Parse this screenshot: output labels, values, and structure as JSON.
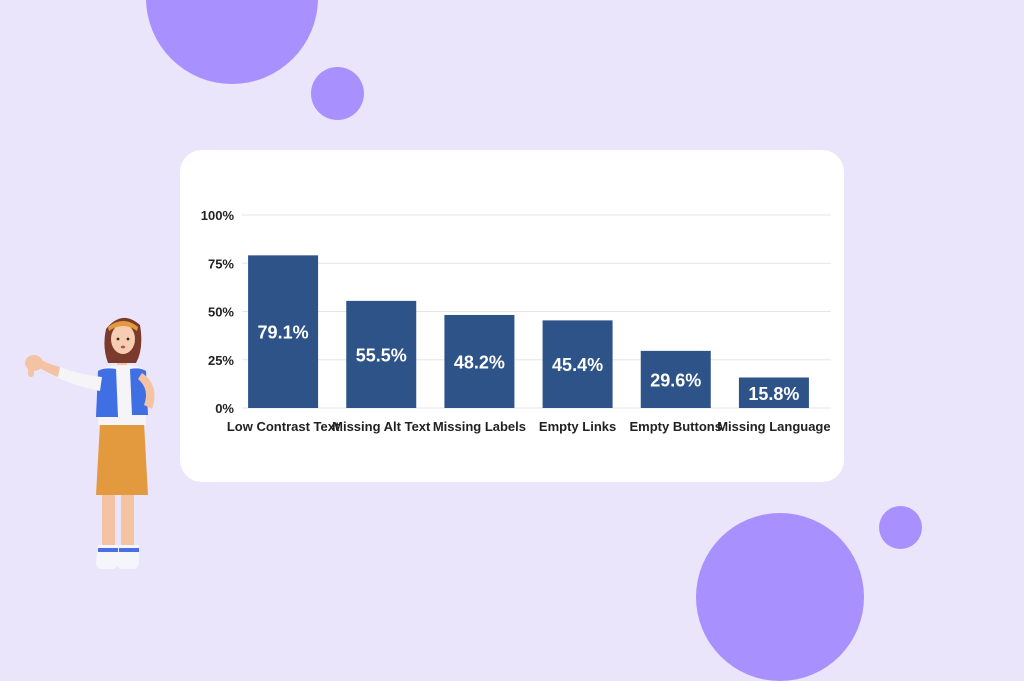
{
  "colors": {
    "background": "#ebe5fc",
    "circle": "#a990ff",
    "card": "#ffffff",
    "bar": "#2d5389",
    "bar_label": "#ffffff",
    "text": "#222222",
    "gridline": "#e6e6e6"
  },
  "chart_data": {
    "type": "bar",
    "categories": [
      "Low Contrast Text",
      "Missing Alt Text",
      "Missing Labels",
      "Empty Links",
      "Empty Buttons",
      "Missing Language"
    ],
    "values": [
      79.1,
      55.5,
      48.2,
      45.4,
      29.6,
      15.8
    ],
    "value_labels": [
      "79.1%",
      "55.5%",
      "48.2%",
      "45.4%",
      "29.6%",
      "15.8%"
    ],
    "y_ticks": [
      0,
      25,
      50,
      75,
      100
    ],
    "y_tick_labels": [
      "0%",
      "25%",
      "50%",
      "75%",
      "100%"
    ],
    "ylim": [
      0,
      100
    ],
    "title": "",
    "xlabel": "",
    "ylabel": "",
    "grid": true,
    "legend": "none"
  },
  "illustration": {
    "description_icon": "woman-thumbs-down-icon"
  }
}
